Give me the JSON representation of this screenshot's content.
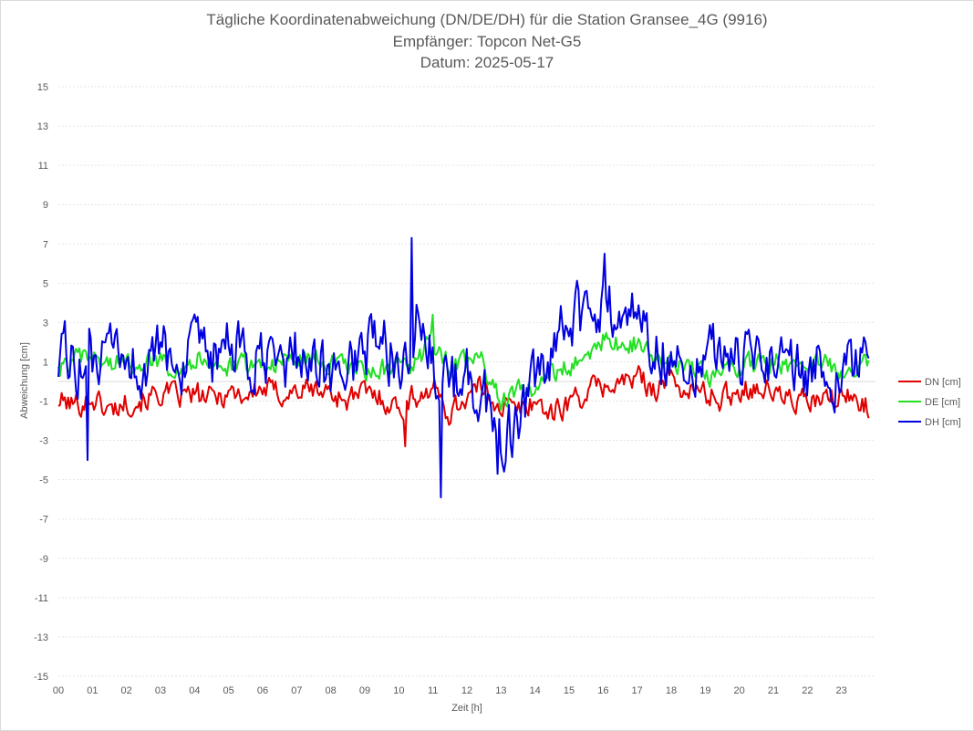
{
  "chart_data": {
    "type": "line",
    "title": "Tägliche Koordinatenabweichung (DN/DE/DH) für die Station Gransee_4G (9916)",
    "subtitle": "Empfänger: Topcon Net-G5",
    "date_line": "Datum: 2025-05-17",
    "xlabel": "Zeit [h]",
    "ylabel": "Abweichung [cm]",
    "xlim": [
      0,
      24
    ],
    "ylim": [
      -15,
      15
    ],
    "xticks": [
      "00",
      "01",
      "02",
      "03",
      "04",
      "05",
      "06",
      "07",
      "08",
      "09",
      "10",
      "11",
      "12",
      "13",
      "14",
      "15",
      "16",
      "17",
      "18",
      "19",
      "20",
      "21",
      "22",
      "23"
    ],
    "yticks": [
      "15",
      "13",
      "11",
      "9",
      "7",
      "5",
      "3",
      "1",
      "-1",
      "-3",
      "-5",
      "-7",
      "-9",
      "-11",
      "-13",
      "-15"
    ],
    "grid": "horizontal dotted",
    "legend_position": "right",
    "x": [
      0,
      0.5,
      1,
      1.5,
      2,
      2.5,
      3,
      3.5,
      4,
      4.5,
      5,
      5.5,
      6,
      6.5,
      7,
      7.5,
      8,
      8.5,
      9,
      9.5,
      10,
      10.5,
      11,
      11.5,
      12,
      12.5,
      13,
      13.5,
      14,
      14.5,
      15,
      15.5,
      16,
      16.5,
      17,
      17.5,
      18,
      18.5,
      19,
      19.5,
      20,
      20.5,
      21,
      21.5,
      22,
      22.5,
      23,
      23.5,
      23.8
    ],
    "series": [
      {
        "name": "DN [cm]",
        "color": "#e00000",
        "values": [
          -1.0,
          -1.2,
          -0.8,
          -1.5,
          -1.0,
          -0.9,
          -0.6,
          -0.8,
          -0.7,
          -0.9,
          -0.5,
          -0.7,
          -0.4,
          -0.6,
          -0.5,
          -0.4,
          -0.6,
          -0.9,
          -0.6,
          -0.8,
          -1.4,
          -0.7,
          -0.4,
          -1.6,
          -0.7,
          -0.3,
          -1.2,
          -1.5,
          -0.9,
          -1.7,
          -1.0,
          -0.6,
          -0.2,
          -0.1,
          0.2,
          -0.3,
          0.1,
          -0.5,
          -0.6,
          -0.9,
          -0.4,
          -0.2,
          -0.6,
          -0.9,
          -1.1,
          -1.0,
          -0.8,
          -0.9,
          -1.2
        ]
      },
      {
        "name": "DE [cm]",
        "color": "#22e022",
        "values": [
          0.6,
          1.0,
          1.2,
          0.9,
          1.0,
          1.1,
          1.0,
          0.8,
          1.1,
          1.2,
          0.6,
          0.8,
          0.9,
          1.0,
          1.1,
          1.2,
          0.9,
          0.7,
          0.5,
          0.6,
          0.5,
          1.0,
          2.0,
          0.8,
          0.9,
          1.0,
          -1.1,
          -0.6,
          -0.2,
          0.3,
          0.8,
          1.2,
          2.2,
          1.8,
          2.0,
          1.2,
          0.8,
          0.6,
          0.3,
          0.5,
          0.7,
          0.9,
          1.0,
          0.8,
          1.1,
          0.9,
          0.7,
          0.8,
          0.8
        ]
      },
      {
        "name": "DH [cm]",
        "color": "#0000e0",
        "values": [
          1.5,
          1.0,
          0.8,
          1.0,
          1.2,
          0.5,
          1.5,
          1.0,
          1.2,
          0.9,
          1.8,
          1.0,
          0.8,
          0.6,
          1.5,
          1.0,
          0.3,
          0.6,
          1.8,
          2.0,
          0.9,
          3.2,
          1.0,
          -0.5,
          0.3,
          -0.8,
          -3.0,
          -2.0,
          -0.3,
          0.8,
          3.5,
          3.0,
          4.0,
          3.2,
          3.8,
          1.8,
          1.2,
          0.8,
          1.8,
          1.5,
          1.0,
          1.2,
          1.6,
          0.9,
          0.5,
          0.8,
          0.2,
          0.6,
          1.0
        ]
      }
    ],
    "extremes": [
      {
        "series": "DH [cm]",
        "x": 0.85,
        "y": -4.0
      },
      {
        "series": "DH [cm]",
        "x": 10.38,
        "y": 7.3
      },
      {
        "series": "DH [cm]",
        "x": 11.25,
        "y": -5.9
      },
      {
        "series": "DH [cm]",
        "x": 12.9,
        "y": -4.7
      },
      {
        "series": "DH [cm]",
        "x": 16.05,
        "y": 6.5
      },
      {
        "series": "DN [cm]",
        "x": 10.2,
        "y": -3.3
      },
      {
        "series": "DE [cm]",
        "x": 11.0,
        "y": 3.4
      }
    ]
  }
}
